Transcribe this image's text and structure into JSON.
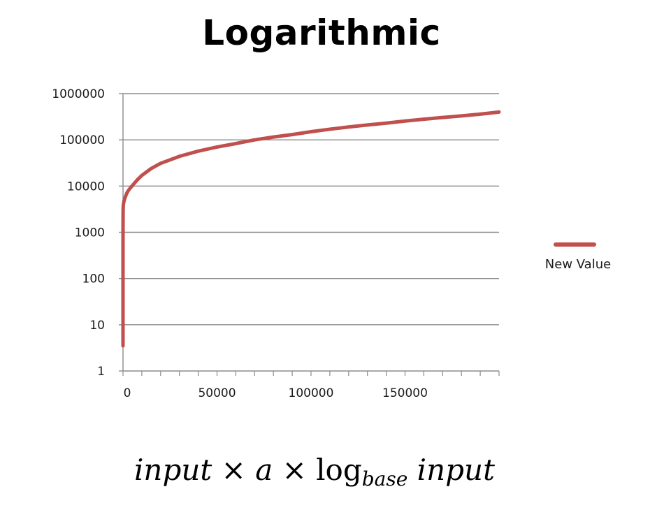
{
  "chart_data": {
    "type": "line",
    "title": "Logarithmic",
    "xlabel": "",
    "ylabel": "",
    "y_scale": "log",
    "xlim": [
      0,
      200000
    ],
    "ylim": [
      1,
      1000000
    ],
    "x_ticks": [
      0,
      50000,
      100000,
      150000
    ],
    "x_tick_labels": [
      "0",
      "50000",
      "100000",
      "150000"
    ],
    "y_ticks": [
      1,
      10,
      100,
      1000,
      10000,
      100000,
      1000000
    ],
    "y_tick_labels": [
      "1",
      "10",
      "100",
      "1000",
      "10000",
      "100000",
      "1000000"
    ],
    "grid": "horizontal",
    "legend_position": "right",
    "series": [
      {
        "name": "New Value",
        "color": "#c0504d",
        "x": [
          1,
          5,
          10,
          20,
          50,
          100,
          200,
          500,
          1000,
          2000,
          3000,
          5000,
          7500,
          10000,
          15000,
          20000,
          30000,
          40000,
          50000,
          60000,
          70000,
          80000,
          90000,
          100000,
          110000,
          120000,
          130000,
          140000,
          150000,
          160000,
          170000,
          180000,
          190000,
          200000
        ],
        "y": [
          3.5,
          480,
          900,
          1700,
          2800,
          3500,
          4000,
          4700,
          5500,
          7000,
          8200,
          10300,
          13500,
          17000,
          24000,
          31000,
          44000,
          57000,
          70000,
          83000,
          100000,
          115000,
          130000,
          150000,
          170000,
          190000,
          210000,
          230000,
          255000,
          280000,
          305000,
          330000,
          360000,
          400000
        ]
      }
    ],
    "annotation": {
      "formula_main": "input × a × ",
      "formula_log": "log",
      "formula_sub": "base",
      "formula_tail": " input"
    }
  }
}
